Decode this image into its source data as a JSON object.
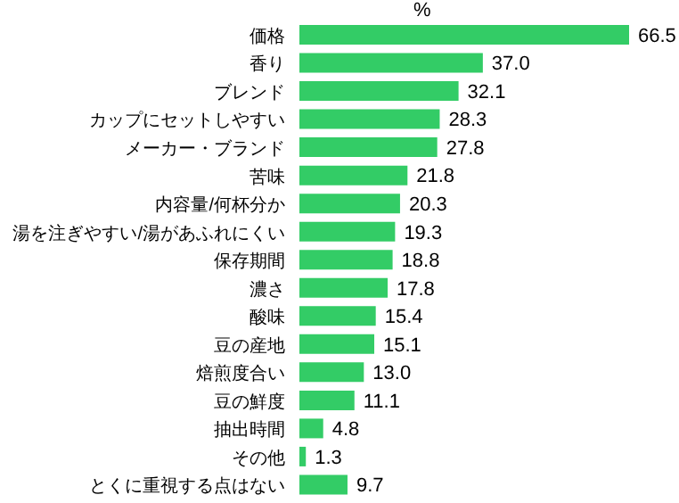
{
  "chart_data": {
    "type": "bar",
    "orientation": "horizontal",
    "xlabel": "%",
    "categories": [
      "価格",
      "香り",
      "ブレンド",
      "カップにセットしやすい",
      "メーカー・ブランド",
      "苦味",
      "内容量/何杯分か",
      "湯を注ぎやすい/湯があふれにくい",
      "保存期間",
      "濃さ",
      "酸味",
      "豆の産地",
      "焙煎度合い",
      "豆の鮮度",
      "抽出時間",
      "その他",
      "とくに重視する点はない"
    ],
    "values": [
      66.5,
      37.0,
      32.1,
      28.3,
      27.8,
      21.8,
      20.3,
      19.3,
      18.8,
      17.8,
      15.4,
      15.1,
      13.0,
      11.1,
      4.8,
      1.3,
      9.7
    ],
    "value_labels": [
      "66.5",
      "37.0",
      "32.1",
      "28.3",
      "27.8",
      "21.8",
      "20.3",
      "19.3",
      "18.8",
      "17.8",
      "15.4",
      "15.1",
      "13.0",
      "11.1",
      "4.8",
      "1.3",
      "9.7"
    ],
    "color": "#33cc66",
    "grid": false
  }
}
